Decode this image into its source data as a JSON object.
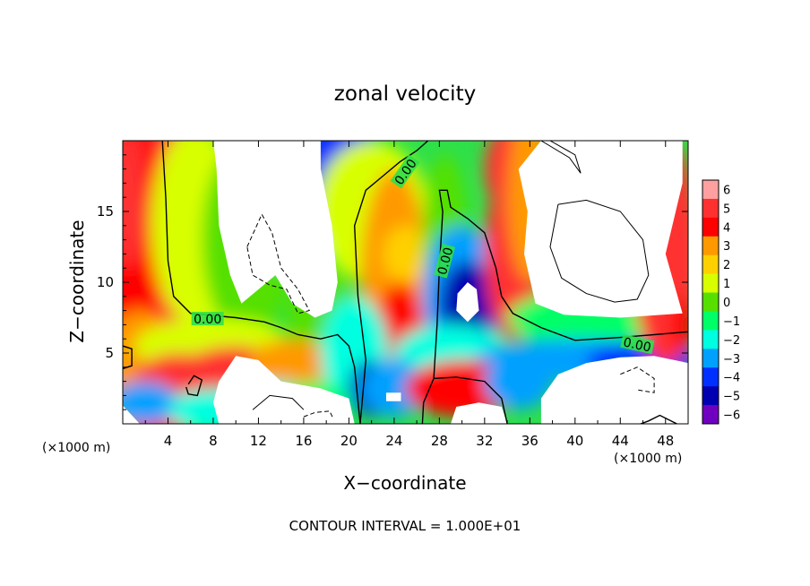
{
  "chart_data": {
    "type": "heatmap",
    "title": "zonal velocity",
    "xlabel": "X−coordinate",
    "ylabel": "Z−coordinate",
    "x_unit_label": "(×1000 m)",
    "x_unit_label_right": "(×1000 m)",
    "footer": "CONTOUR INTERVAL = 1.000E+01",
    "xlim": [
      0,
      50
    ],
    "ylim": [
      0,
      20
    ],
    "x_ticks": [
      4,
      8,
      12,
      16,
      20,
      24,
      28,
      32,
      36,
      40,
      44,
      48
    ],
    "y_ticks": [
      5,
      10,
      15
    ],
    "colorbar": {
      "levels": [
        6,
        5,
        4,
        3,
        2,
        1,
        0,
        -1,
        -2,
        -3,
        -4,
        -5,
        -6
      ],
      "labels": [
        "6",
        "5",
        "4",
        "3",
        "2",
        "1",
        "0",
        "−1",
        "−2",
        "−3",
        "−4",
        "−5",
        "−6"
      ],
      "colors": [
        "#ffa0a0",
        "#ff3030",
        "#ff0000",
        "#ff9900",
        "#ffd000",
        "#d8ff00",
        "#55e000",
        "#00ff66",
        "#00ffe0",
        "#00a0ff",
        "#0030ff",
        "#0000b0",
        "#7000c0"
      ]
    },
    "contour_labels": [
      "0.00",
      "0.00",
      "0.00",
      "0.00"
    ],
    "colors": {
      "above_range": "#ffffff",
      "below_range": "#ffffff"
    }
  }
}
